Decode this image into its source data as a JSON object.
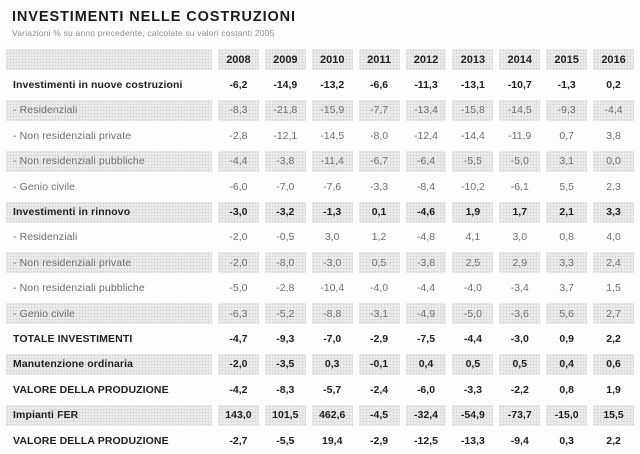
{
  "header": {
    "title": "INVESTIMENTI NELLE COSTRUZIONI",
    "subtitle": "Variazioni % su anno precedente, calcolate su valori costanti 2005"
  },
  "chart_data": {
    "type": "table",
    "title": "INVESTIMENTI NELLE COSTRUZIONI",
    "subtitle": "Variazioni % su anno precedente, calcolate su valori costanti 2005",
    "columns": [
      "2008",
      "2009",
      "2010",
      "2011",
      "2012",
      "2013",
      "2014",
      "2015",
      "2016"
    ],
    "rows": [
      {
        "label": "Investimenti in nuove costruzioni",
        "bold": true,
        "shaded": false,
        "values": [
          "-6,2",
          "-14,9",
          "-13,2",
          "-6,6",
          "-11,3",
          "-13,1",
          "-10,7",
          "-1,3",
          "0,2"
        ]
      },
      {
        "label": "- Residenziali",
        "bold": false,
        "shaded": true,
        "values": [
          "-8,3",
          "-21,8",
          "-15,9",
          "-7,7",
          "-13,4",
          "-15,8",
          "-14,5",
          "-9,3",
          "-4,4"
        ]
      },
      {
        "label": "- Non residenziali private",
        "bold": false,
        "shaded": false,
        "values": [
          "-2,8",
          "-12,1",
          "-14,5",
          "-8,0",
          "-12,4",
          "-14,4",
          "-11,9",
          "0,7",
          "3,8"
        ]
      },
      {
        "label": "- Non residenziali pubbliche",
        "bold": false,
        "shaded": true,
        "values": [
          "-4,4",
          "-3,8",
          "-11,4",
          "-6,7",
          "-6,4",
          "-5,5",
          "-5,0",
          "3,1",
          "0,0"
        ]
      },
      {
        "label": "- Genio civile",
        "bold": false,
        "shaded": false,
        "values": [
          "-6,0",
          "-7,0",
          "-7,6",
          "-3,3",
          "-8,4",
          "-10,2",
          "-6,1",
          "5,5",
          "2,3"
        ]
      },
      {
        "label": "Investimenti in rinnovo",
        "bold": true,
        "shaded": true,
        "values": [
          "-3,0",
          "-3,2",
          "-1,3",
          "0,1",
          "-4,6",
          "1,9",
          "1,7",
          "2,1",
          "3,3"
        ]
      },
      {
        "label": "- Residenziali",
        "bold": false,
        "shaded": false,
        "values": [
          "-2,0",
          "-0,5",
          "3,0",
          "1,2",
          "-4,8",
          "4,1",
          "3,0",
          "0,8",
          "4,0"
        ]
      },
      {
        "label": "- Non residenziali private",
        "bold": false,
        "shaded": true,
        "values": [
          "-2,0",
          "-8,0",
          "-3,0",
          "0,5",
          "-3,8",
          "2,5",
          "2,9",
          "3,3",
          "2,4"
        ]
      },
      {
        "label": "- Non residenziali pubbliche",
        "bold": false,
        "shaded": false,
        "values": [
          "-5,0",
          "-2,8",
          "-10,4",
          "-4,0",
          "-4,4",
          "-4,0",
          "-3,4",
          "3,7",
          "1,5"
        ]
      },
      {
        "label": "- Genio civile",
        "bold": false,
        "shaded": true,
        "values": [
          "-6,3",
          "-5,2",
          "-8,8",
          "-3,1",
          "-4,9",
          "-5,0",
          "-3,6",
          "5,6",
          "2,7"
        ]
      },
      {
        "label": "TOTALE INVESTIMENTI",
        "bold": true,
        "shaded": false,
        "values": [
          "-4,7",
          "-9,3",
          "-7,0",
          "-2,9",
          "-7,5",
          "-4,4",
          "-3,0",
          "0,9",
          "2,2"
        ]
      },
      {
        "label": "Manutenzione ordinaria",
        "bold": true,
        "shaded": true,
        "values": [
          "-2,0",
          "-3,5",
          "0,3",
          "-0,1",
          "0,4",
          "0,5",
          "0,5",
          "0,4",
          "0,6"
        ]
      },
      {
        "label": "VALORE DELLA PRODUZIONE",
        "bold": true,
        "shaded": false,
        "values": [
          "-4,2",
          "-8,3",
          "-5,7",
          "-2,4",
          "-6,0",
          "-3,3",
          "-2,2",
          "0,8",
          "1,9"
        ]
      },
      {
        "label": "Impianti FER",
        "bold": true,
        "shaded": true,
        "values": [
          "143,0",
          "101,5",
          "462,6",
          "-4,5",
          "-32,4",
          "-54,9",
          "-73,7",
          "-15,0",
          "15,5"
        ]
      },
      {
        "label": "VALORE DELLA PRODUZIONE",
        "bold": true,
        "shaded": false,
        "values": [
          "-2,7",
          "-5,5",
          "19,4",
          "-2,9",
          "-12,5",
          "-13,3",
          "-9,4",
          "0,3",
          "2,2"
        ]
      }
    ]
  },
  "colors": {
    "page_background": "#fdfdfc",
    "title_text": "#1b1b1b",
    "subtitle_text": "#8f8f8f",
    "shaded_cell": "#ececec",
    "bold_text": "#1f1f1f",
    "regular_text": "#6e6e6e"
  }
}
